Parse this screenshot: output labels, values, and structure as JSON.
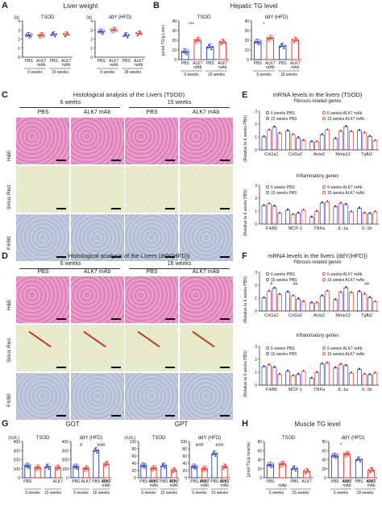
{
  "panels": {
    "A": {
      "letter": "A",
      "title": "Liver weight",
      "left_group": "TSOD",
      "right_group": "ddY (HFD)",
      "left_unit": "(g)",
      "right_unit": "(g)",
      "x_left": [
        "PBS",
        "ALK7 mAb",
        "PBS",
        "ALK7 mAb"
      ],
      "weeks_left": [
        "6 weeks",
        "15 weeks"
      ],
      "weeks_right": [
        "6 weeks",
        "18 weeks"
      ]
    },
    "B": {
      "letter": "B",
      "title": "Hepatic TG level",
      "left_group": "TSOD",
      "right_group": "ddY (HFD)",
      "ylabel": "(μmol TG/g Liver)",
      "sig_left": "***",
      "sig_right": "*",
      "weeks_left": [
        "6 weeks",
        "15 weeks"
      ],
      "weeks_right": [
        "6 weeks",
        "18 weeks"
      ]
    },
    "C": {
      "letter": "C",
      "title": "Histological analysis of the Livers (TSOD)",
      "col_groups": [
        "6 weeks",
        "15 weeks"
      ],
      "cols": [
        "PBS",
        "ALK7 mAb",
        "PBS",
        "ALK7 mAb"
      ],
      "rows": [
        "H&E",
        "Sirius Red",
        "F4/80"
      ]
    },
    "D": {
      "letter": "D",
      "title": "Histological analysis of the Livers (ddY(HFD))",
      "col_groups": [
        "6 weeks",
        "16 weeks"
      ],
      "cols": [
        "PBS",
        "ALK7 mAb",
        "PBS",
        "ALK7 mAb"
      ],
      "rows": [
        "H&E",
        "Sirius Red",
        "F4/80"
      ]
    },
    "E": {
      "letter": "E",
      "title": "mRNA levels in the livers (TSOD)",
      "sub1": "Fibrosis-related genes",
      "sub2": "Inflammatory genes",
      "ylabel": "(Relative to 6 weeks PBS)",
      "genes1": [
        "Col1a1",
        "Col1a2",
        "Acta2",
        "Mmp13",
        "Tgfb1"
      ],
      "genes2": [
        "F4/80",
        "MCP-1",
        "TNFa",
        "IL-1a",
        "IL-1b"
      ],
      "legend": [
        "6 weeks PBS",
        "6 weeks ALK7 mAb",
        "15 weeks PBS",
        "15 weeks ALK7 mAb"
      ]
    },
    "F": {
      "letter": "F",
      "title": "mRNA levels in the livers (ddY(HFD))",
      "sub1": "Fibrosis-related genes",
      "sub2": "Inflammatory genes",
      "ylabel": "(Relative to 6 weeks PBS)",
      "genes1": [
        "Col1a1",
        "Col1a2",
        "Acta2",
        "Mmp13",
        "Tgfb1"
      ],
      "genes2": [
        "F4/80",
        "MCP-1",
        "TNFa",
        "IL-1a",
        "IL-1b"
      ],
      "legend": [
        "6 weeks PBS",
        "6 weeks ALK7 mAb",
        "16 weeks PBS",
        "16 weeks ALK7 mAb"
      ],
      "sig": [
        "#",
        "##",
        "##",
        "#",
        "##"
      ]
    },
    "G": {
      "letter": "G",
      "got": "GOT",
      "gpt": "GPT",
      "unit": "(IU/L)",
      "tsod": "TSOD",
      "ddy": "ddY (HFD)",
      "weeks": [
        "6 weeks",
        "15 weeks",
        "6 weeks",
        "16 weeks"
      ],
      "sig_got": [
        "#",
        "###"
      ],
      "sig_gpt": [
        "###",
        "###"
      ]
    },
    "H": {
      "letter": "H",
      "title": "Muscle TG level",
      "tsod": "TSOD",
      "ddy": "ddY (HFD)",
      "ylabel": "(μmol TG/g muscle)",
      "weeks_left": [
        "6 weeks",
        "15 weeks"
      ],
      "weeks_right": [
        "6 weeks",
        "18 weeks"
      ],
      "sig": "*"
    }
  },
  "x_labels": {
    "pbs": "PBS",
    "alk7": "ALK7",
    "mab": "mAb"
  },
  "colors": {
    "blue": "#2a3bc9",
    "red": "#e8332c",
    "text": "#222222"
  },
  "chart_data": [
    {
      "type": "scatter",
      "panel": "A-TSOD",
      "ylim": [
        0,
        4
      ],
      "yticks": [
        0,
        1,
        2,
        3,
        4
      ],
      "groups": [
        "6w PBS",
        "6w ALK7 mAb",
        "15w PBS",
        "15w ALK7 mAb"
      ],
      "values": [
        2.4,
        2.4,
        2.5,
        2.5
      ]
    },
    {
      "type": "scatter",
      "panel": "A-ddY",
      "ylim": [
        0,
        4
      ],
      "yticks": [
        0,
        1,
        2,
        3,
        4
      ],
      "groups": [
        "6w PBS",
        "6w ALK7 mAb",
        "18w PBS",
        "18w ALK7 mAb"
      ],
      "values": [
        2.8,
        3.0,
        2.4,
        2.6
      ]
    },
    {
      "type": "bar",
      "panel": "B-TSOD",
      "ylim": [
        0,
        40
      ],
      "yticks": [
        0,
        10,
        20,
        30,
        40
      ],
      "groups": [
        "6w PBS",
        "6w ALK7 mAb",
        "15w PBS",
        "15w ALK7 mAb"
      ],
      "values": [
        8,
        20,
        13,
        18
      ]
    },
    {
      "type": "bar",
      "panel": "B-ddY",
      "ylim": [
        0,
        40
      ],
      "yticks": [
        0,
        10,
        20,
        30,
        40
      ],
      "groups": [
        "6w PBS",
        "6w ALK7 mAb",
        "18w PBS",
        "18w ALK7 mAb"
      ],
      "values": [
        18,
        22,
        14,
        20
      ]
    },
    {
      "type": "bar",
      "panel": "G-GOT-TSOD",
      "ylim": [
        0,
        400
      ],
      "yticks": [
        0,
        100,
        200,
        300,
        400
      ],
      "values": [
        130,
        110,
        120,
        110
      ]
    },
    {
      "type": "bar",
      "panel": "G-GOT-ddY",
      "ylim": [
        0,
        400
      ],
      "yticks": [
        0,
        100,
        200,
        300,
        400
      ],
      "values": [
        120,
        100,
        300,
        150
      ]
    },
    {
      "type": "bar",
      "panel": "G-GPT-TSOD",
      "ylim": [
        0,
        100
      ],
      "yticks": [
        0,
        20,
        40,
        60,
        80,
        100
      ],
      "values": [
        33,
        26,
        33,
        20
      ]
    },
    {
      "type": "bar",
      "panel": "G-GPT-ddY",
      "ylim": [
        0,
        100
      ],
      "yticks": [
        0,
        20,
        40,
        60,
        80,
        100
      ],
      "values": [
        30,
        24,
        66,
        30
      ]
    },
    {
      "type": "bar",
      "panel": "H-TSOD",
      "ylim": [
        0,
        80
      ],
      "yticks": [
        0,
        20,
        40,
        60,
        80
      ],
      "values": [
        28,
        30,
        20,
        14
      ]
    },
    {
      "type": "bar",
      "panel": "H-ddY",
      "ylim": [
        0,
        80
      ],
      "yticks": [
        0,
        20,
        40,
        60,
        80
      ],
      "values": [
        48,
        52,
        40,
        16
      ]
    }
  ]
}
